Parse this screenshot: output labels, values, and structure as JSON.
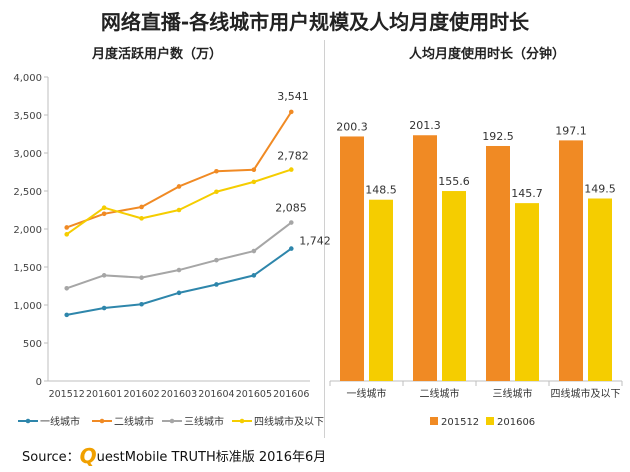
{
  "title": "网络直播-各线城市用户规模及人均月度使用时长",
  "source": {
    "prefix": "Source：",
    "brand_initial": "Q",
    "text": "uestMobile TRUTH标准版 2016年6月"
  },
  "colors": {
    "tier1": "#2e86ab",
    "tier2": "#f08a24",
    "tier3": "#a6a6a6",
    "tier4": "#f5cd00",
    "bar_201512": "#f08a24",
    "bar_201606": "#f5cd00"
  },
  "chart_data": [
    {
      "type": "line",
      "title": "月度活跃用户数（万）",
      "x": [
        "201512",
        "201601",
        "201602",
        "201603",
        "201604",
        "201605",
        "201606"
      ],
      "ylim": [
        0,
        4000
      ],
      "yticks": [
        "0",
        "500",
        "1,000",
        "1,500",
        "2,000",
        "2,500",
        "3,000",
        "3,500",
        "4,000"
      ],
      "grid": false,
      "legend": "bottom",
      "series": [
        {
          "name": "一线城市",
          "color_key": "tier1",
          "values": [
            870,
            960,
            1010,
            1160,
            1270,
            1390,
            1742
          ],
          "end_label": "1,742"
        },
        {
          "name": "二线城市",
          "color_key": "tier2",
          "values": [
            2020,
            2200,
            2290,
            2560,
            2760,
            2780,
            3541
          ],
          "end_label": "3,541"
        },
        {
          "name": "三线城市",
          "color_key": "tier3",
          "values": [
            1220,
            1390,
            1360,
            1460,
            1590,
            1710,
            2085
          ],
          "end_label": "2,085"
        },
        {
          "name": "四线城市及以下",
          "color_key": "tier4",
          "values": [
            1930,
            2280,
            2140,
            2250,
            2490,
            2620,
            2782
          ],
          "end_label": "2,782"
        }
      ]
    },
    {
      "type": "bar",
      "title": "人均月度使用时长（分钟）",
      "categories": [
        "一线城市",
        "二线城市",
        "三线城市",
        "四线城市及以下"
      ],
      "ylim": [
        0,
        240
      ],
      "legend": "bottom",
      "series": [
        {
          "name": "201512",
          "color_key": "bar_201512",
          "values": [
            200.3,
            201.3,
            192.5,
            197.1
          ],
          "labels": [
            "200.3",
            "201.3",
            "192.5",
            "197.1"
          ]
        },
        {
          "name": "201606",
          "color_key": "bar_201606",
          "values": [
            148.5,
            155.6,
            145.7,
            149.5
          ],
          "labels": [
            "148.5",
            "155.6",
            "145.7",
            "149.5"
          ]
        }
      ]
    }
  ]
}
